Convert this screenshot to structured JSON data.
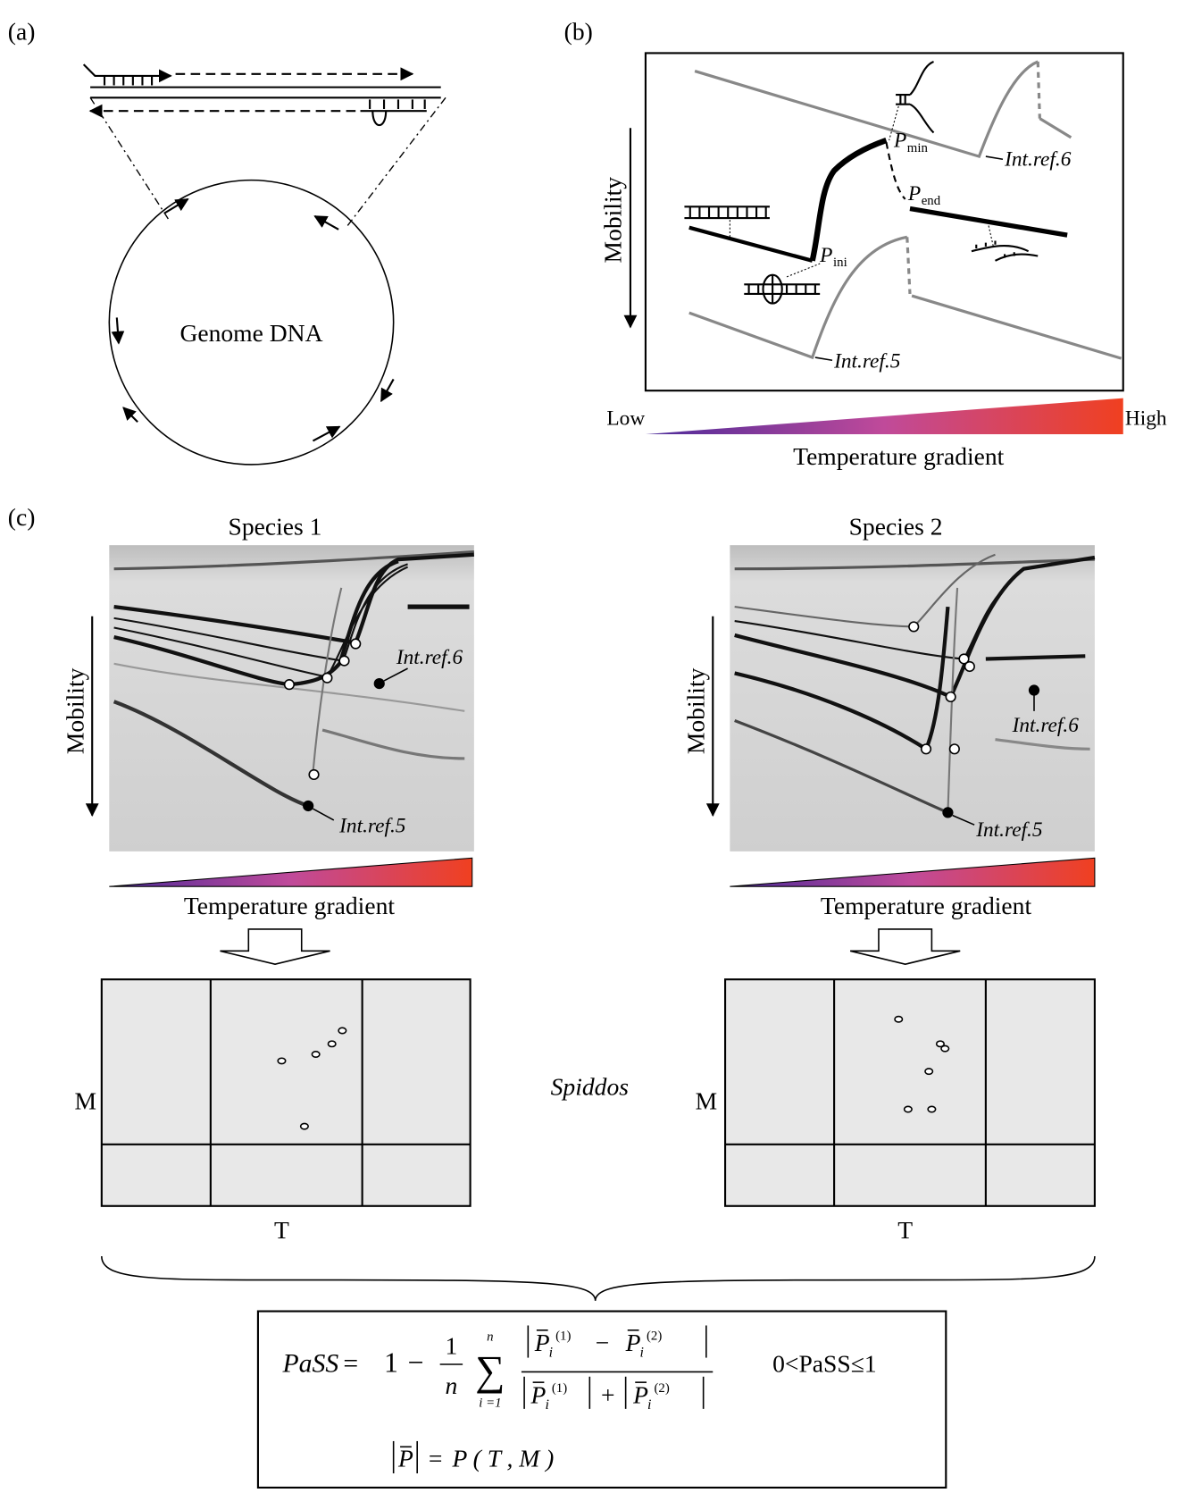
{
  "panel_a": {
    "label": "(a)",
    "circle_label": "Genome DNA"
  },
  "panel_b": {
    "label": "(b)",
    "y_axis_label": "Mobility",
    "p_symbol": "P",
    "p_min": "min",
    "p_ini": "ini",
    "p_end": "end",
    "ref_top": "Int.ref.6",
    "ref_bottom": "Int.ref.5",
    "low": "Low",
    "high": "High",
    "gradient_label": "Temperature gradient"
  },
  "panel_c": {
    "label": "(c)",
    "method": "Spiddos",
    "species": [
      {
        "title": "Species 1",
        "y_axis_label": "Mobility",
        "ref_top": "Int.ref.6",
        "ref_bottom": "Int.ref.5",
        "gradient_label": "Temperature gradient",
        "map_y_label": "M",
        "map_x_label": "T"
      },
      {
        "title": "Species 2",
        "y_axis_label": "Mobility",
        "ref_top": "Int.ref.6",
        "ref_bottom": "Int.ref.5",
        "gradient_label": "Temperature gradient",
        "map_y_label": "M",
        "map_x_label": "T"
      }
    ]
  },
  "formula": {
    "lhs": "PaSS",
    "equals": "=",
    "one": "1",
    "minus": "−",
    "frac_num": "1",
    "frac_den": "n",
    "sum": "∑",
    "sum_upper": "n",
    "sum_lower": "i =1",
    "vec": "P",
    "index": "i",
    "sup1": "(1)",
    "sup2": "(2)",
    "plus": "+",
    "range": "0<PaSS≤1",
    "def_rhs": "P ( T , M )"
  }
}
